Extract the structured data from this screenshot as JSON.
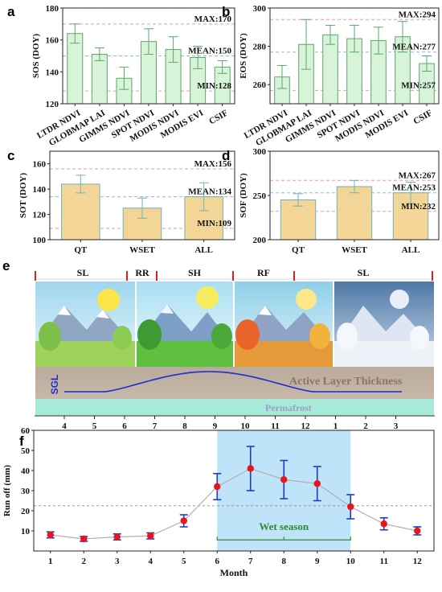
{
  "chart_data": [
    {
      "panel": "a",
      "type": "bar",
      "ylabel": "SOS (DOY)",
      "ylim": [
        120,
        180
      ],
      "yticks": [
        120,
        140,
        160,
        180
      ],
      "categories": [
        "LTDR NDVI",
        "GLOBMAP LAI",
        "GIMMS NDVI",
        "SPOT NDVI",
        "MODIS NDVI",
        "MODIS EVI",
        "CSIF"
      ],
      "values": [
        164,
        151,
        136,
        159,
        154,
        149,
        143
      ],
      "err": [
        6,
        4,
        7,
        8,
        8,
        7,
        4
      ],
      "bar_color": "#d8f4d8",
      "edge_color": "#5aa86a",
      "ref_lines": [
        {
          "label": "MAX:170",
          "value": 170,
          "color": "#f08080"
        },
        {
          "label": "MEAN:150",
          "value": 150,
          "color": "#7aa6d6"
        },
        {
          "label": "MIN:128",
          "value": 128,
          "color": "#f08080"
        }
      ]
    },
    {
      "panel": "b",
      "type": "bar",
      "ylabel": "EOS (DOY)",
      "ylim": [
        250,
        300
      ],
      "yticks": [
        260,
        280,
        300
      ],
      "categories": [
        "LTDR NDVI",
        "GLOBMAP LAI",
        "GIMMS NDVI",
        "SPOT NDVI",
        "MODIS NDVI",
        "MODIS EVI",
        "CSIF"
      ],
      "values": [
        264,
        281,
        286,
        284,
        283,
        285,
        271
      ],
      "err": [
        6,
        13,
        5,
        7,
        7,
        8,
        4
      ],
      "bar_color": "#d8f4d8",
      "edge_color": "#5aa86a",
      "ref_lines": [
        {
          "label": "MAX:294",
          "value": 294,
          "color": "#f08080"
        },
        {
          "label": "MEAN:277",
          "value": 277,
          "color": "#7aa6d6"
        },
        {
          "label": "MIN:257",
          "value": 257,
          "color": "#f08080"
        }
      ]
    },
    {
      "panel": "c",
      "type": "bar",
      "ylabel": "SOT (DOY)",
      "ylim": [
        100,
        170
      ],
      "yticks": [
        100,
        120,
        140,
        160
      ],
      "categories": [
        "QT",
        "WSET",
        "ALL"
      ],
      "values": [
        144,
        125,
        134
      ],
      "err": [
        7,
        8,
        11
      ],
      "bar_color": "#f3d597",
      "edge_color": "#6fb3b3",
      "ref_lines": [
        {
          "label": "MAX:156",
          "value": 156,
          "color": "#f08080"
        },
        {
          "label": "MEAN:134",
          "value": 134,
          "color": "#7aa6d6"
        },
        {
          "label": "MIN:109",
          "value": 109,
          "color": "#f08080"
        }
      ]
    },
    {
      "panel": "d",
      "type": "bar",
      "ylabel": "SOF (DOY)",
      "ylim": [
        200,
        300
      ],
      "yticks": [
        200,
        250,
        300
      ],
      "categories": [
        "QT",
        "WSET",
        "ALL"
      ],
      "values": [
        245,
        260,
        253
      ],
      "err": [
        7,
        7,
        12
      ],
      "bar_color": "#f3d597",
      "edge_color": "#6fb3b3",
      "ref_lines": [
        {
          "label": "MAX:267",
          "value": 267,
          "color": "#f08080"
        },
        {
          "label": "MEAN:253",
          "value": 253,
          "color": "#7aa6d6"
        },
        {
          "label": "MIN:232",
          "value": 232,
          "color": "#f08080"
        }
      ]
    },
    {
      "panel": "f",
      "type": "scatter",
      "xlabel": "Month",
      "ylabel": "Run off (mm)",
      "xlim": [
        0.5,
        12.5
      ],
      "ylim": [
        0,
        60
      ],
      "yticks": [
        10,
        20,
        30,
        40,
        50,
        60
      ],
      "x": [
        1,
        2,
        3,
        4,
        5,
        6,
        7,
        8,
        9,
        10,
        11,
        12
      ],
      "y": [
        8,
        6,
        7,
        7.5,
        15,
        32,
        41,
        35.5,
        33.5,
        22,
        13.5,
        10
      ],
      "err": [
        1.5,
        1.2,
        1.5,
        1.5,
        3,
        6.5,
        11,
        9.5,
        8.5,
        6,
        3,
        2
      ],
      "mean_line": 22.5,
      "shaded_range": [
        6,
        10
      ],
      "shaded_label": "Wet season",
      "point_color": "#e8141e",
      "err_color": "#1a3fc4",
      "line_color": "#b0b0b0"
    }
  ],
  "panel_e": {
    "segments": [
      {
        "label": "SL"
      },
      {
        "label": "RR"
      },
      {
        "label": "SH"
      },
      {
        "label": "RF"
      },
      {
        "label": "SL"
      }
    ],
    "month_ticks": [
      "4",
      "5",
      "6",
      "7",
      "8",
      "9",
      "10",
      "11",
      "12",
      "1",
      "2",
      "3"
    ],
    "sgl_label": "SGL",
    "active_layer_label": "Active Layer Thickness",
    "permafrost_label": "Permafrost"
  },
  "panel_letters": {
    "a": "a",
    "b": "b",
    "c": "c",
    "d": "d",
    "e": "e",
    "f": "f"
  }
}
